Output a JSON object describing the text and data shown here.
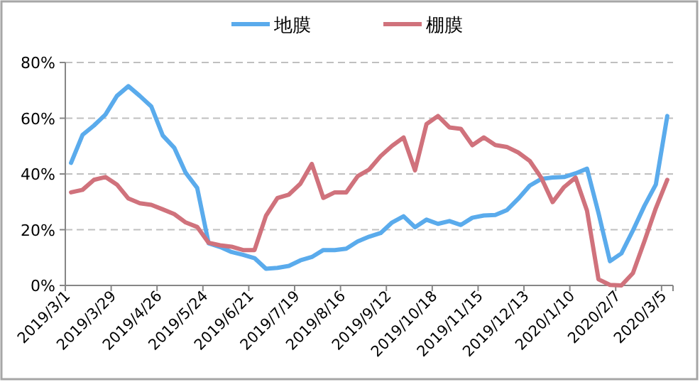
{
  "chart_data": {
    "type": "line",
    "categories": [
      "2019/3/1",
      null,
      null,
      null,
      "2019/3/29",
      null,
      null,
      null,
      "2019/4/26",
      null,
      null,
      null,
      "2019/5/24",
      null,
      null,
      null,
      "2019/6/21",
      null,
      null,
      null,
      "2019/7/19",
      null,
      null,
      null,
      "2019/8/16",
      null,
      null,
      null,
      "2019/9/12",
      null,
      null,
      null,
      "2019/10/18",
      null,
      null,
      null,
      "2019/11/15",
      null,
      null,
      null,
      "2019/12/13",
      null,
      null,
      null,
      "2020/1/10",
      null,
      null,
      null,
      "2020/2/7",
      null,
      null,
      null,
      "2020/3/5"
    ],
    "series": [
      {
        "name": "地膜",
        "color": "#5aabec",
        "values": [
          44,
          54,
          57.4,
          61.3,
          68,
          71.5,
          68,
          64.2,
          53.8,
          49.4,
          40.4,
          35,
          15.1,
          13.8,
          12,
          11,
          9.8,
          6,
          6.3,
          7,
          9,
          10.2,
          12.7,
          12.7,
          13.2,
          15.8,
          17.5,
          18.8,
          22.6,
          24.8,
          20.9,
          23.6,
          22.1,
          23.1,
          21.7,
          24.3,
          25.1,
          25.3,
          27,
          31.1,
          35.8,
          38.2,
          38.7,
          38.9,
          40.2,
          41.9,
          26,
          8.7,
          11.5,
          19.7,
          28.5,
          36.2,
          60.8
        ]
      },
      {
        "name": "棚膜",
        "color": "#d0727c",
        "values": [
          33.4,
          34.3,
          37.9,
          38.9,
          36.2,
          31.2,
          29.5,
          28.9,
          27.3,
          25.6,
          22.6,
          21,
          15.3,
          14.4,
          13.9,
          12.7,
          12.7,
          25,
          31.4,
          32.6,
          36.5,
          43.6,
          31.4,
          33.4,
          33.4,
          39.2,
          41.6,
          46.4,
          50.1,
          53.1,
          41.3,
          57.9,
          60.8,
          56.7,
          56.2,
          50.3,
          53.1,
          50.4,
          49.7,
          47.7,
          44.7,
          38.7,
          29.9,
          35.3,
          38.7,
          26.8,
          2.2,
          0.2,
          0,
          4.4,
          15.8,
          27.7,
          37.9
        ]
      }
    ],
    "ylim": [
      0,
      80
    ],
    "yticks": [
      {
        "value": 0,
        "label": "0%"
      },
      {
        "value": 20,
        "label": "20%"
      },
      {
        "value": 40,
        "label": "40%"
      },
      {
        "value": 60,
        "label": "60%"
      },
      {
        "value": 80,
        "label": "80%"
      }
    ],
    "grid": "y",
    "legend": "top",
    "line_style": "solid"
  }
}
